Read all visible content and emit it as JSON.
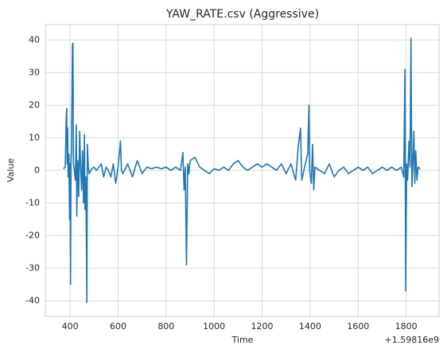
{
  "chart_data": {
    "type": "line",
    "title": "YAW_RATE.csv (Aggressive)",
    "x_label": "Time",
    "y_label": "Value",
    "x_offset_label": "+1.59816e9",
    "xlim": [
      297,
      1937
    ],
    "ylim": [
      -44.8,
      44.7
    ],
    "xticks": [
      400,
      600,
      800,
      1000,
      1200,
      1400,
      1600,
      1800
    ],
    "yticks": [
      -40,
      -30,
      -20,
      -10,
      0,
      10,
      20,
      30,
      40
    ],
    "grid": true,
    "series": [
      {
        "name": "YAW_RATE",
        "color": "#1f77b4",
        "x": [
          372,
          380,
          384,
          386,
          388,
          390,
          392,
          395,
          398,
          400,
          402,
          404,
          406,
          410,
          412,
          414,
          418,
          422,
          426,
          428,
          432,
          436,
          440,
          444,
          448,
          452,
          456,
          460,
          462,
          466,
          470,
          472,
          476,
          480,
          490,
          500,
          510,
          520,
          530,
          540,
          550,
          560,
          570,
          580,
          590,
          600,
          610,
          614,
          620,
          640,
          660,
          680,
          700,
          720,
          740,
          760,
          780,
          800,
          820,
          840,
          860,
          870,
          875,
          880,
          885,
          890,
          895,
          900,
          920,
          940,
          960,
          980,
          1000,
          1020,
          1040,
          1060,
          1080,
          1100,
          1120,
          1140,
          1160,
          1180,
          1200,
          1220,
          1240,
          1260,
          1280,
          1300,
          1320,
          1340,
          1350,
          1360,
          1365,
          1380,
          1390,
          1395,
          1398,
          1405,
          1410,
          1415,
          1420,
          1440,
          1460,
          1480,
          1500,
          1520,
          1540,
          1560,
          1580,
          1600,
          1620,
          1640,
          1660,
          1680,
          1700,
          1720,
          1740,
          1760,
          1780,
          1790,
          1795,
          1798,
          1802,
          1806,
          1812,
          1816,
          1820,
          1824,
          1828,
          1832,
          1836,
          1840,
          1845,
          1850,
          1858
        ],
        "values": [
          0.5,
          1,
          16,
          19,
          2,
          13,
          -2,
          5,
          -15,
          2,
          -35,
          3,
          6,
          38.5,
          39,
          2,
          0,
          -3,
          14,
          -14,
          3,
          -8,
          12,
          1,
          -6,
          6,
          -10,
          11,
          -12,
          -2,
          -40.5,
          8,
          1,
          -1,
          0.5,
          1,
          0,
          1,
          2,
          -2,
          1,
          0,
          -2,
          2,
          -4,
          1,
          9,
          0,
          -1,
          2,
          -2,
          3,
          -1,
          1,
          0.5,
          1,
          0.5,
          1,
          0,
          1,
          0,
          5.5,
          -6,
          1,
          -29,
          2,
          -1,
          3,
          4,
          1,
          0,
          -1,
          0.5,
          0,
          1,
          0,
          2,
          3,
          1,
          0,
          1,
          2,
          1,
          2,
          1,
          0,
          2,
          -1,
          2,
          -3,
          7,
          13,
          -3,
          2,
          5,
          20,
          0,
          -4,
          8,
          -6,
          1,
          0,
          -1,
          2,
          -2,
          0,
          1,
          -1,
          0,
          1,
          0,
          1,
          -1,
          0,
          1,
          0,
          1,
          0,
          1,
          -2,
          31,
          -37,
          2,
          -3,
          9,
          1,
          40.5,
          -5,
          2,
          12,
          -4,
          6,
          -3,
          1,
          0.5
        ]
      }
    ]
  }
}
